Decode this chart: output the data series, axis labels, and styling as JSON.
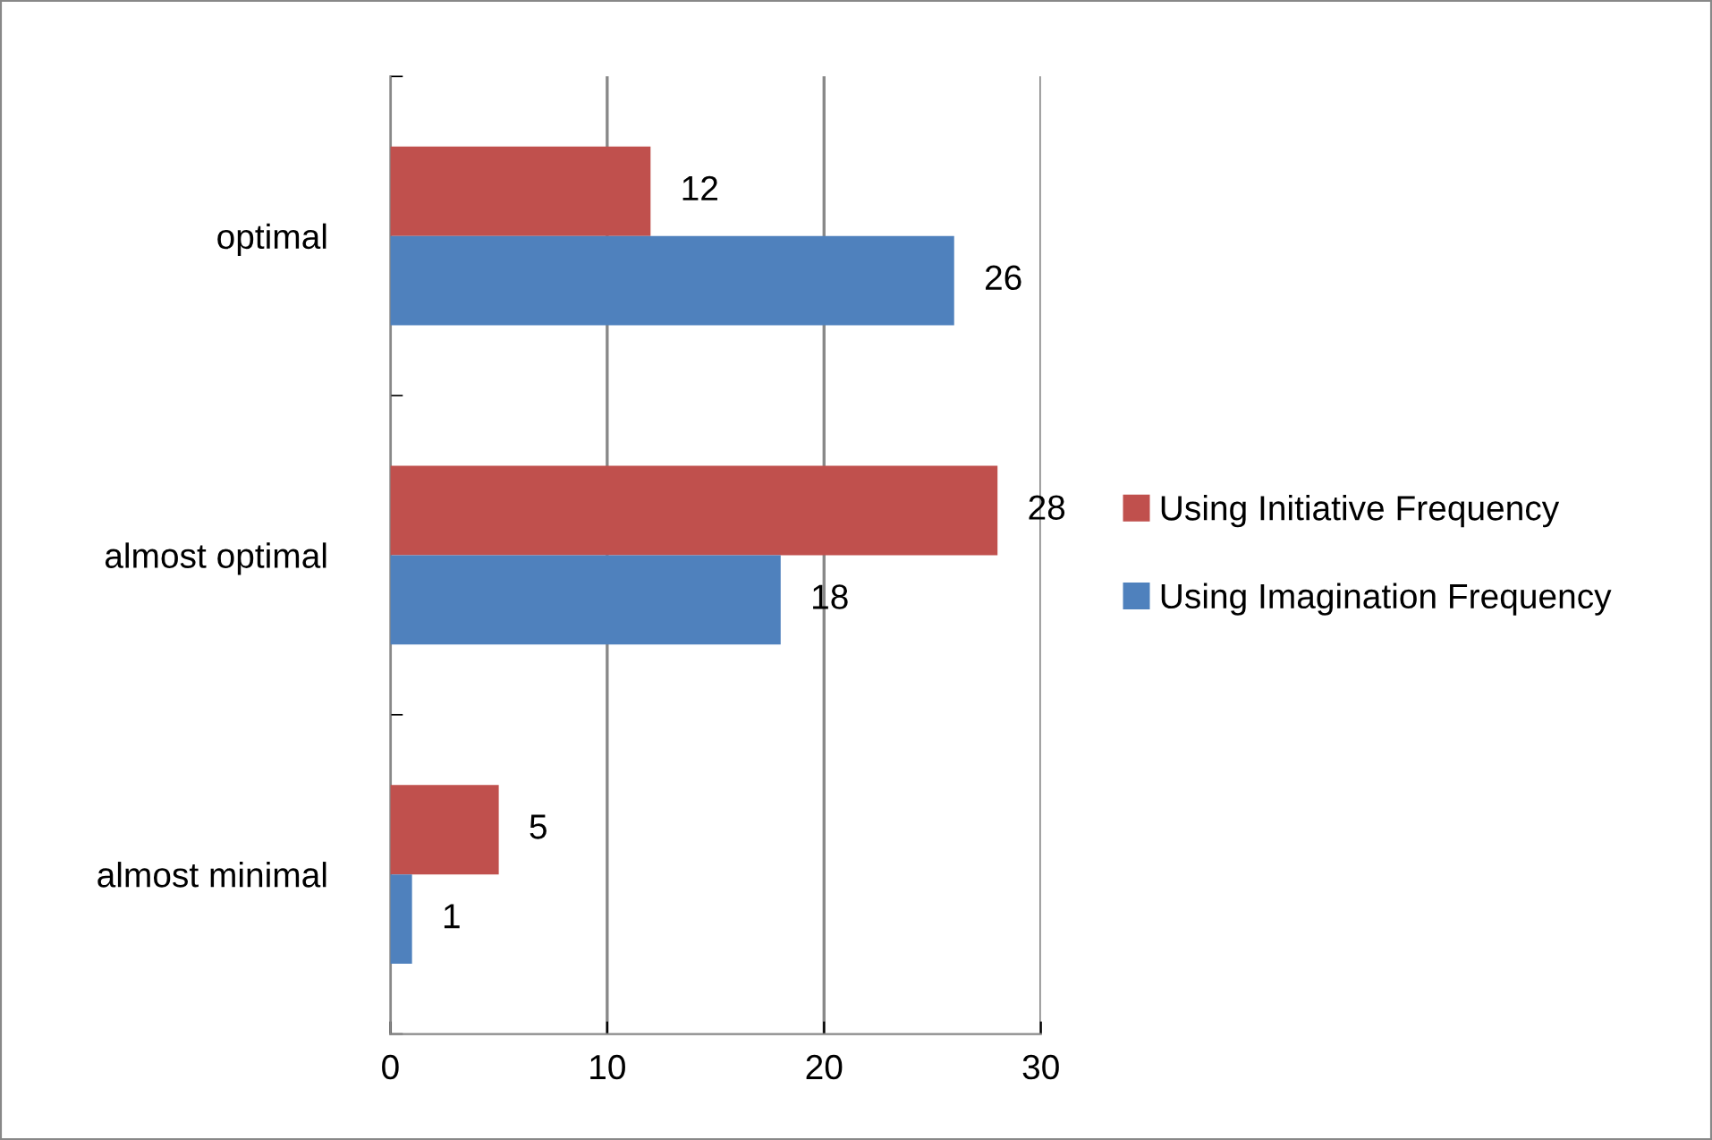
{
  "chart_data": {
    "type": "bar",
    "orientation": "horizontal",
    "categories": [
      "optimal",
      "almost optimal",
      "almost minimal"
    ],
    "series": [
      {
        "name": "Using Initiative Frequency",
        "color": "#c0504d",
        "values": [
          12,
          28,
          5
        ]
      },
      {
        "name": "Using Imagination Frequency",
        "color": "#4f81bd",
        "values": [
          26,
          18,
          1
        ]
      }
    ],
    "xlim": [
      0,
      30
    ],
    "xticks": [
      0,
      10,
      20,
      30
    ],
    "grid": "x",
    "legend": "right",
    "data_labels": true
  }
}
